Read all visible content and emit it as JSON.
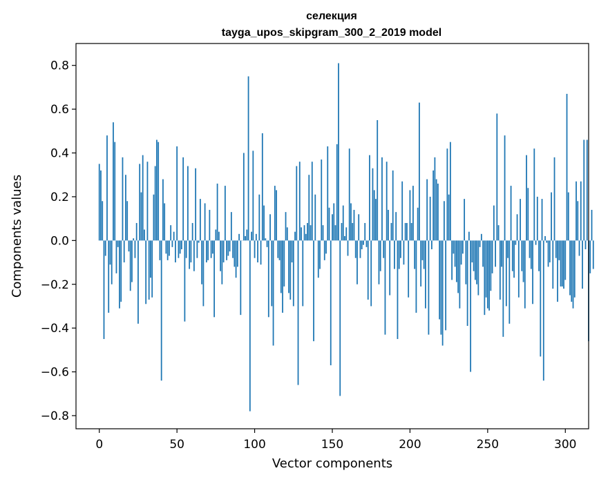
{
  "chart_data": {
    "type": "bar",
    "title": "селекция",
    "subtitle": "tayga_upos_skipgram_300_2_2019 model",
    "xlabel": "Vector components",
    "ylabel": "Components values",
    "xlim": [
      -15,
      315
    ],
    "ylim": [
      -0.86,
      0.9
    ],
    "x_ticks": [
      0,
      50,
      100,
      150,
      200,
      250,
      300
    ],
    "y_ticks": [
      -0.8,
      -0.6,
      -0.4,
      -0.2,
      0.0,
      0.2,
      0.4,
      0.6,
      0.8
    ],
    "x_tick_labels": [
      "0",
      "50",
      "100",
      "150",
      "200",
      "250",
      "300"
    ],
    "y_tick_labels": [
      "−0.8",
      "−0.6",
      "−0.4",
      "−0.2",
      "0.0",
      "0.2",
      "0.4",
      "0.6",
      "0.8"
    ],
    "grid": false,
    "bar_color": "#1f77b4",
    "values": [
      0.35,
      0.32,
      0.18,
      -0.45,
      -0.07,
      0.48,
      -0.33,
      -0.11,
      -0.2,
      0.54,
      0.45,
      -0.15,
      -0.03,
      -0.31,
      -0.28,
      0.38,
      -0.1,
      0.3,
      0.18,
      -0.05,
      -0.23,
      -0.19,
      0.01,
      -0.08,
      0.08,
      -0.38,
      0.35,
      0.22,
      0.39,
      0.05,
      -0.29,
      0.36,
      -0.27,
      -0.17,
      -0.26,
      0.21,
      0.34,
      0.46,
      0.45,
      -0.09,
      -0.64,
      0.28,
      0.17,
      -0.06,
      -0.09,
      -0.07,
      0.07,
      -0.03,
      0.04,
      -0.1,
      0.43,
      -0.08,
      -0.06,
      -0.04,
      0.38,
      -0.37,
      -0.08,
      0.34,
      -0.13,
      -0.1,
      0.08,
      -0.14,
      0.33,
      -0.08,
      -0.01,
      0.19,
      -0.2,
      -0.3,
      0.17,
      -0.1,
      -0.09,
      0.14,
      -0.08,
      -0.06,
      -0.35,
      0.05,
      0.26,
      0.04,
      -0.14,
      -0.2,
      -0.1,
      0.25,
      -0.09,
      -0.07,
      -0.05,
      0.13,
      -0.08,
      -0.12,
      -0.17,
      -0.12,
      0.03,
      -0.34,
      0.0,
      0.4,
      0.02,
      0.05,
      0.75,
      -0.78,
      0.04,
      0.41,
      -0.08,
      0.03,
      -0.1,
      0.21,
      -0.11,
      0.49,
      0.16,
      0.01,
      -0.03,
      -0.35,
      0.12,
      -0.3,
      -0.48,
      0.25,
      0.23,
      -0.08,
      -0.09,
      -0.24,
      -0.33,
      -0.21,
      0.13,
      0.06,
      -0.24,
      -0.27,
      -0.1,
      -0.3,
      0.04,
      0.34,
      -0.66,
      0.36,
      0.06,
      -0.3,
      0.07,
      0.03,
      0.08,
      0.3,
      0.07,
      0.36,
      -0.46,
      0.21,
      0.0,
      -0.17,
      -0.13,
      0.37,
      0.07,
      -0.09,
      -0.06,
      0.43,
      0.15,
      -0.57,
      0.12,
      0.17,
      0.07,
      0.44,
      0.81,
      -0.71,
      0.08,
      0.16,
      0.02,
      0.06,
      -0.07,
      0.42,
      0.17,
      0.08,
      0.14,
      -0.08,
      -0.2,
      0.12,
      -0.08,
      -0.04,
      -0.02,
      0.08,
      -0.03,
      -0.27,
      0.39,
      -0.3,
      0.33,
      0.23,
      0.19,
      0.55,
      -0.2,
      -0.14,
      0.38,
      -0.08,
      -0.43,
      0.36,
      0.14,
      -0.25,
      0.08,
      0.32,
      -0.13,
      0.13,
      -0.45,
      -0.13,
      -0.08,
      0.27,
      -0.11,
      0.08,
      0.08,
      -0.26,
      0.23,
      0.08,
      0.25,
      -0.13,
      -0.33,
      0.15,
      0.63,
      -0.21,
      -0.09,
      -0.13,
      -0.31,
      0.28,
      -0.43,
      0.2,
      -0.04,
      0.32,
      0.38,
      0.28,
      0.26,
      -0.36,
      -0.43,
      -0.48,
      0.18,
      -0.41,
      0.42,
      0.21,
      0.45,
      -0.18,
      -0.06,
      -0.12,
      -0.19,
      -0.24,
      -0.31,
      -0.11,
      -0.06,
      0.19,
      -0.2,
      -0.39,
      0.04,
      -0.6,
      -0.1,
      -0.14,
      -0.18,
      -0.2,
      -0.25,
      -0.03,
      0.03,
      -0.12,
      -0.34,
      -0.26,
      -0.31,
      -0.32,
      -0.23,
      -0.15,
      0.16,
      -0.12,
      0.58,
      0.07,
      -0.27,
      -0.12,
      -0.44,
      0.48,
      -0.3,
      -0.08,
      -0.38,
      0.25,
      -0.14,
      -0.17,
      -0.02,
      0.12,
      -0.26,
      0.19,
      -0.14,
      -0.19,
      -0.31,
      0.39,
      0.24,
      -0.08,
      -0.13,
      -0.29,
      0.42,
      -0.02,
      0.2,
      -0.14,
      -0.53,
      0.19,
      -0.64,
      0.02,
      -0.01,
      -0.12,
      -0.1,
      0.22,
      -0.22,
      0.38,
      -0.08,
      -0.28,
      -0.09,
      -0.21,
      -0.21,
      -0.22,
      -0.18,
      0.67,
      0.22,
      -0.25,
      -0.28,
      -0.31,
      -0.26,
      0.27,
      0.18,
      -0.07,
      0.27,
      -0.22,
      0.46,
      -0.04,
      0.46,
      -0.46,
      -0.15,
      0.14,
      -0.13
    ]
  }
}
